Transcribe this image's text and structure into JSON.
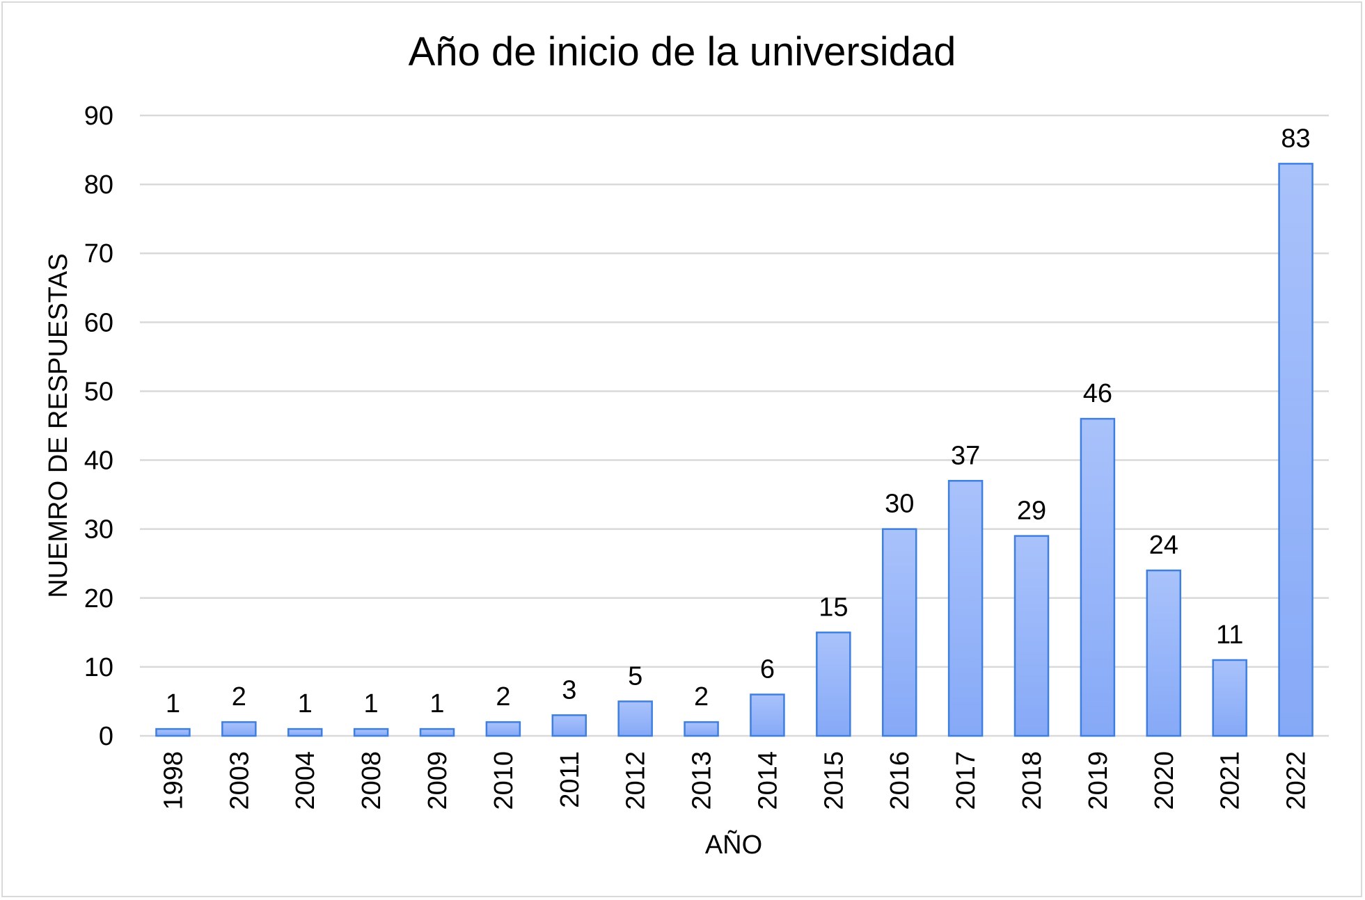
{
  "chart_data": {
    "type": "bar",
    "title": "Año de inicio de la universidad",
    "xlabel": "AÑO",
    "ylabel": "NUEMRO DE RESPUESTAS",
    "categories": [
      "1998",
      "2003",
      "2004",
      "2008",
      "2009",
      "2010",
      "2011",
      "2012",
      "2013",
      "2014",
      "2015",
      "2016",
      "2017",
      "2018",
      "2019",
      "2020",
      "2021",
      "2022"
    ],
    "values": [
      1,
      2,
      1,
      1,
      1,
      2,
      3,
      5,
      2,
      6,
      15,
      30,
      37,
      29,
      46,
      24,
      11,
      83
    ],
    "ylim": [
      0,
      90
    ],
    "yticks": [
      "0",
      "10",
      "20",
      "30",
      "40",
      "50",
      "60",
      "70",
      "80",
      "90"
    ],
    "grid": true,
    "legend": "none",
    "colors": {
      "bar_fill_top": "#a9c2fb",
      "bar_fill_bottom": "#86a9f7",
      "bar_border": "#3f7fe0",
      "grid": "#d9d9d9"
    }
  }
}
